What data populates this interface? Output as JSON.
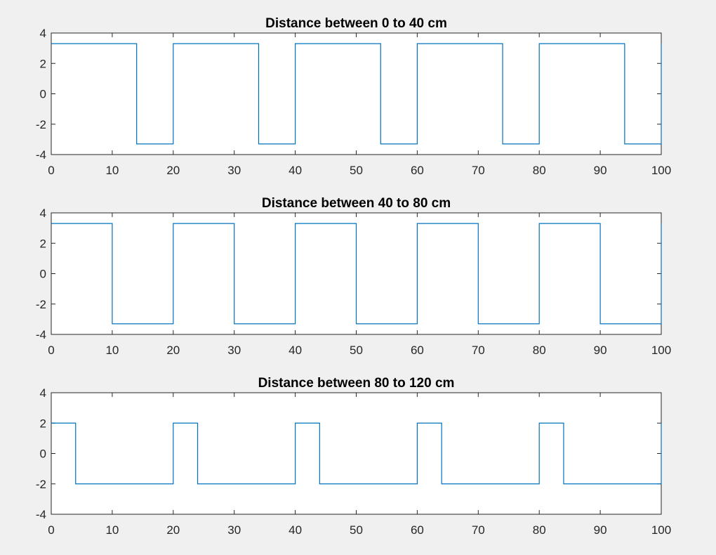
{
  "chart_data": [
    {
      "type": "line",
      "title": "Distance between 0 to 40 cm",
      "xlabel": "",
      "ylabel": "",
      "xlim": [
        0,
        100
      ],
      "ylim": [
        -4,
        4
      ],
      "xticks": [
        "0",
        "10",
        "20",
        "30",
        "40",
        "50",
        "60",
        "70",
        "80",
        "90",
        "100"
      ],
      "yticks": [
        "-4",
        "-2",
        "0",
        "2",
        "4"
      ],
      "grid": false,
      "line_color": "#0072BD",
      "series": [
        {
          "x": [
            0,
            14,
            14,
            20,
            20,
            34,
            34,
            40,
            40,
            54,
            54,
            60,
            60,
            74,
            74,
            80,
            80,
            94,
            94,
            100,
            100
          ],
          "y": [
            3.3,
            3.3,
            -3.3,
            -3.3,
            3.3,
            3.3,
            -3.3,
            -3.3,
            3.3,
            3.3,
            -3.3,
            -3.3,
            3.3,
            3.3,
            -3.3,
            -3.3,
            3.3,
            3.3,
            -3.3,
            -3.3,
            3.3
          ]
        }
      ]
    },
    {
      "type": "line",
      "title": "Distance between 40 to 80 cm",
      "xlabel": "",
      "ylabel": "",
      "xlim": [
        0,
        100
      ],
      "ylim": [
        -4,
        4
      ],
      "xticks": [
        "0",
        "10",
        "20",
        "30",
        "40",
        "50",
        "60",
        "70",
        "80",
        "90",
        "100"
      ],
      "yticks": [
        "-4",
        "-2",
        "0",
        "2",
        "4"
      ],
      "grid": false,
      "line_color": "#0072BD",
      "series": [
        {
          "x": [
            0,
            10,
            10,
            20,
            20,
            30,
            30,
            40,
            40,
            50,
            50,
            60,
            60,
            70,
            70,
            80,
            80,
            90,
            90,
            100,
            100
          ],
          "y": [
            3.3,
            3.3,
            -3.3,
            -3.3,
            3.3,
            3.3,
            -3.3,
            -3.3,
            3.3,
            3.3,
            -3.3,
            -3.3,
            3.3,
            3.3,
            -3.3,
            -3.3,
            3.3,
            3.3,
            -3.3,
            -3.3,
            3.3
          ]
        }
      ]
    },
    {
      "type": "line",
      "title": "Distance between 80 to 120 cm",
      "xlabel": "",
      "ylabel": "",
      "xlim": [
        0,
        100
      ],
      "ylim": [
        -4,
        4
      ],
      "xticks": [
        "0",
        "10",
        "20",
        "30",
        "40",
        "50",
        "60",
        "70",
        "80",
        "90",
        "100"
      ],
      "yticks": [
        "-4",
        "-2",
        "0",
        "2",
        "4"
      ],
      "grid": false,
      "line_color": "#0072BD",
      "series": [
        {
          "x": [
            0,
            4,
            4,
            20,
            20,
            24,
            24,
            40,
            40,
            44,
            44,
            60,
            60,
            64,
            64,
            80,
            80,
            84,
            84,
            100,
            100
          ],
          "y": [
            2,
            2,
            -2,
            -2,
            2,
            2,
            -2,
            -2,
            2,
            2,
            -2,
            -2,
            2,
            2,
            -2,
            -2,
            2,
            2,
            -2,
            -2,
            2
          ]
        }
      ]
    }
  ]
}
